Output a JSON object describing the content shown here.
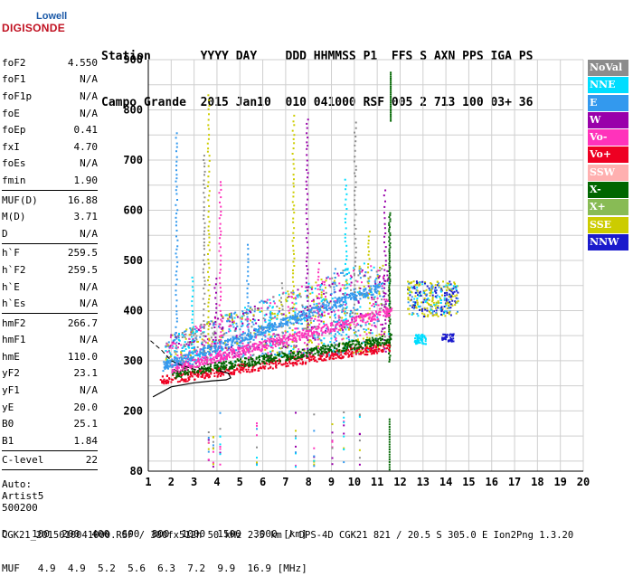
{
  "logo": {
    "line1": "Lowell",
    "line2": "DIGISONDE"
  },
  "header": {
    "labels": "Station       YYYY DAY    DDD HHMMSS P1  FFS S AXN PPS IGA PS",
    "values": "Campo Grande  2015 Jan10  010 041000 RSF 005 2 713 100 03+ 36"
  },
  "params": [
    {
      "group": [
        {
          "k": "foF2",
          "v": "4.550"
        },
        {
          "k": "foF1",
          "v": "N/A"
        },
        {
          "k": "foF1p",
          "v": "N/A"
        },
        {
          "k": "foE",
          "v": "N/A"
        },
        {
          "k": "foEp",
          "v": "0.41"
        },
        {
          "k": "fxI",
          "v": "4.70"
        },
        {
          "k": "foEs",
          "v": "N/A"
        },
        {
          "k": "fmin",
          "v": "1.90"
        }
      ]
    },
    {
      "group": [
        {
          "k": "MUF(D)",
          "v": "16.88"
        },
        {
          "k": "M(D)",
          "v": "3.71"
        },
        {
          "k": "D",
          "v": "N/A"
        }
      ]
    },
    {
      "group": [
        {
          "k": "h`F",
          "v": "259.5"
        },
        {
          "k": "h`F2",
          "v": "259.5"
        },
        {
          "k": "h`E",
          "v": "N/A"
        },
        {
          "k": "h`Es",
          "v": "N/A"
        }
      ]
    },
    {
      "group": [
        {
          "k": "hmF2",
          "v": "266.7"
        },
        {
          "k": "hmF1",
          "v": "N/A"
        },
        {
          "k": "hmE",
          "v": "110.0"
        },
        {
          "k": "yF2",
          "v": "23.1"
        },
        {
          "k": "yF1",
          "v": "N/A"
        },
        {
          "k": "yE",
          "v": "20.0"
        },
        {
          "k": "B0",
          "v": "25.1"
        },
        {
          "k": "B1",
          "v": "1.84"
        }
      ]
    },
    {
      "group": [
        {
          "k": "C-level",
          "v": "22"
        }
      ]
    }
  ],
  "auto": [
    "Auto:",
    "Artist5",
    "500200"
  ],
  "legend": [
    {
      "label": "NoVal",
      "color": "#8c8c8c"
    },
    {
      "label": "NNE",
      "color": "#00ddff"
    },
    {
      "label": "E",
      "color": "#3399ee"
    },
    {
      "label": "W",
      "color": "#9900aa"
    },
    {
      "label": "Vo-",
      "color": "#ff33bb"
    },
    {
      "label": "Vo+",
      "color": "#ee0022"
    },
    {
      "label": "SSW",
      "color": "#ffb0b0"
    },
    {
      "label": "X-",
      "color": "#006600"
    },
    {
      "label": "X+",
      "color": "#88bb55"
    },
    {
      "label": "SSE",
      "color": "#cccc00"
    },
    {
      "label": "NNW",
      "color": "#1a1acc"
    }
  ],
  "chart_data": {
    "type": "scatter",
    "xlabel": "",
    "ylabel": "",
    "xlim": [
      1,
      20
    ],
    "ylim": [
      80,
      900
    ],
    "x_ticks": [
      1,
      2,
      3,
      4,
      5,
      6,
      7,
      8,
      9,
      10,
      11,
      12,
      13,
      14,
      15,
      16,
      17,
      18,
      19,
      20
    ],
    "y_ticks": [
      80,
      200,
      300,
      400,
      500,
      600,
      700,
      800,
      900
    ],
    "grid": true,
    "profile_solid": [
      [
        1.2,
        228
      ],
      [
        2.0,
        248
      ],
      [
        3.0,
        256
      ],
      [
        3.8,
        260
      ],
      [
        4.4,
        262
      ],
      [
        4.6,
        266
      ],
      [
        4.5,
        275
      ],
      [
        4.1,
        280
      ]
    ],
    "profile_dashed": [
      [
        1.1,
        340
      ],
      [
        1.6,
        320
      ],
      [
        2.0,
        300
      ],
      [
        2.5,
        290
      ],
      [
        3.0,
        283
      ],
      [
        3.6,
        284
      ]
    ],
    "traces": [
      {
        "name": "Vo+",
        "x_range": [
          1.5,
          11.6
        ],
        "h_start": 262,
        "h_end": 330
      },
      {
        "name": "X-",
        "x_range": [
          2.0,
          11.6
        ],
        "h_start": 275,
        "h_end": 345
      },
      {
        "name": "Vo-",
        "x_range": [
          2.0,
          11.6
        ],
        "h_start": 285,
        "h_end": 400
      },
      {
        "name": "E",
        "x_range": [
          1.6,
          11.2
        ],
        "h_start": 290,
        "h_end": 450
      }
    ]
  },
  "footer": {
    "d_row": "D    100  200  400  600  800  1000  1500  3000 [km]",
    "muf_row": "MUF   4.9  4.9  5.2  5.6  6.3  7.2  9.9  16.9 [MHz]",
    "file": "CGK21_2015010041000.RSF / 380fx512h 50 kHz 2.5 km / DPS-4D CGK21 821 / 20.5 S 305.0 E Ion2Png 1.3.20"
  }
}
